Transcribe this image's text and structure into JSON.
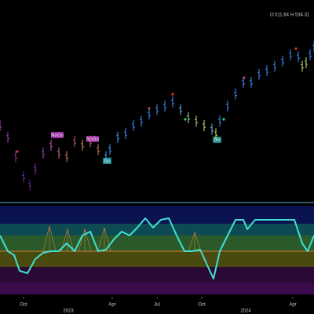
{
  "chart_data": [
    {
      "type": "ohlc",
      "open_label": "O",
      "open_value": "511.64",
      "high_label": "H",
      "high_value": "534.31",
      "x": [
        0,
        10,
        20,
        30,
        38,
        45,
        55,
        65,
        75,
        85,
        95,
        105,
        115,
        125,
        135,
        140,
        150,
        160,
        170,
        180,
        190,
        200,
        210,
        220,
        230,
        240,
        250,
        260,
        270,
        275,
        280,
        290,
        300,
        310,
        320,
        330,
        340,
        350,
        360,
        370,
        380,
        385,
        390,
        395,
        400
      ],
      "values": [
        431,
        418,
        396,
        373,
        364,
        382,
        400,
        409,
        400,
        396,
        413,
        409,
        413,
        404,
        396,
        404,
        418,
        422,
        431,
        436,
        444,
        449,
        453,
        458,
        449,
        440,
        436,
        431,
        427,
        422,
        436,
        453,
        467,
        480,
        480,
        489,
        493,
        498,
        504,
        511,
        509,
        498,
        502,
        511,
        520
      ],
      "colors": [
        "#b04ad0",
        "#a040c0",
        "#8a30b0",
        "#7a2aa0",
        "#6a2090",
        "#8a30b0",
        "#a04ac0",
        "#c060c0",
        "#d07090",
        "#e08060",
        "#c06080",
        "#e09050",
        "#d07070",
        "#d08060",
        "#3aa0ff",
        "#3aa0ff",
        "#3aa0ff",
        "#3a90ff",
        "#3a90ff",
        "#3a90ff",
        "#3a90ff",
        "#3a90ff",
        "#3a90ff",
        "#3a90ff",
        "#60c0ff",
        "#a0e0a0",
        "#c0e080",
        "#d0e060",
        "#60c0ff",
        "#d0e060",
        "#3a90ff",
        "#3a90ff",
        "#3a90ff",
        "#3a90ff",
        "#3a90ff",
        "#3a90ff",
        "#3a90ff",
        "#3a90ff",
        "#3a90ff",
        "#3a90ff",
        "#3a90ff",
        "#d0e060",
        "#c0e080",
        "#3a90ff",
        "#3a90ff"
      ],
      "xlim": [
        0,
        400
      ],
      "ylim": [
        345,
        573
      ],
      "xticks": [
        {
          "value": 30,
          "label": "Oct"
        },
        {
          "value": 143,
          "label": "Apr"
        },
        {
          "value": 200,
          "label": "Jul"
        },
        {
          "value": 257,
          "label": "Oct"
        },
        {
          "value": 373,
          "label": "Apr"
        }
      ],
      "year_ticks": [
        {
          "value": 87,
          "label": "2023"
        },
        {
          "value": 313,
          "label": "2024"
        }
      ],
      "annotations": [
        "NoGo",
        "NoGo",
        "Go",
        "Go"
      ]
    },
    {
      "type": "line",
      "x": [
        0,
        10,
        18,
        25,
        35,
        45,
        55,
        65,
        75,
        85,
        95,
        105,
        115,
        125,
        135,
        145,
        155,
        165,
        175,
        185,
        195,
        205,
        215,
        225,
        235,
        245,
        255,
        265,
        272,
        280,
        290,
        300,
        310,
        315,
        325,
        340,
        360,
        375,
        385,
        392,
        400
      ],
      "values": [
        2,
        0,
        -0.5,
        -2.5,
        -2.8,
        -1,
        -0.2,
        0,
        0,
        1,
        0,
        2,
        2.5,
        0,
        0.2,
        1.5,
        2.5,
        2,
        3,
        4.2,
        3,
        4,
        4.2,
        2,
        0,
        0,
        0.2,
        -2,
        -3.5,
        0,
        2,
        4,
        4,
        2.8,
        4,
        4,
        4,
        4,
        1,
        0,
        2
      ],
      "color": "#40e0d0",
      "xlim": [
        0,
        400
      ],
      "ylim": [
        -5.5,
        5.8
      ]
    }
  ]
}
